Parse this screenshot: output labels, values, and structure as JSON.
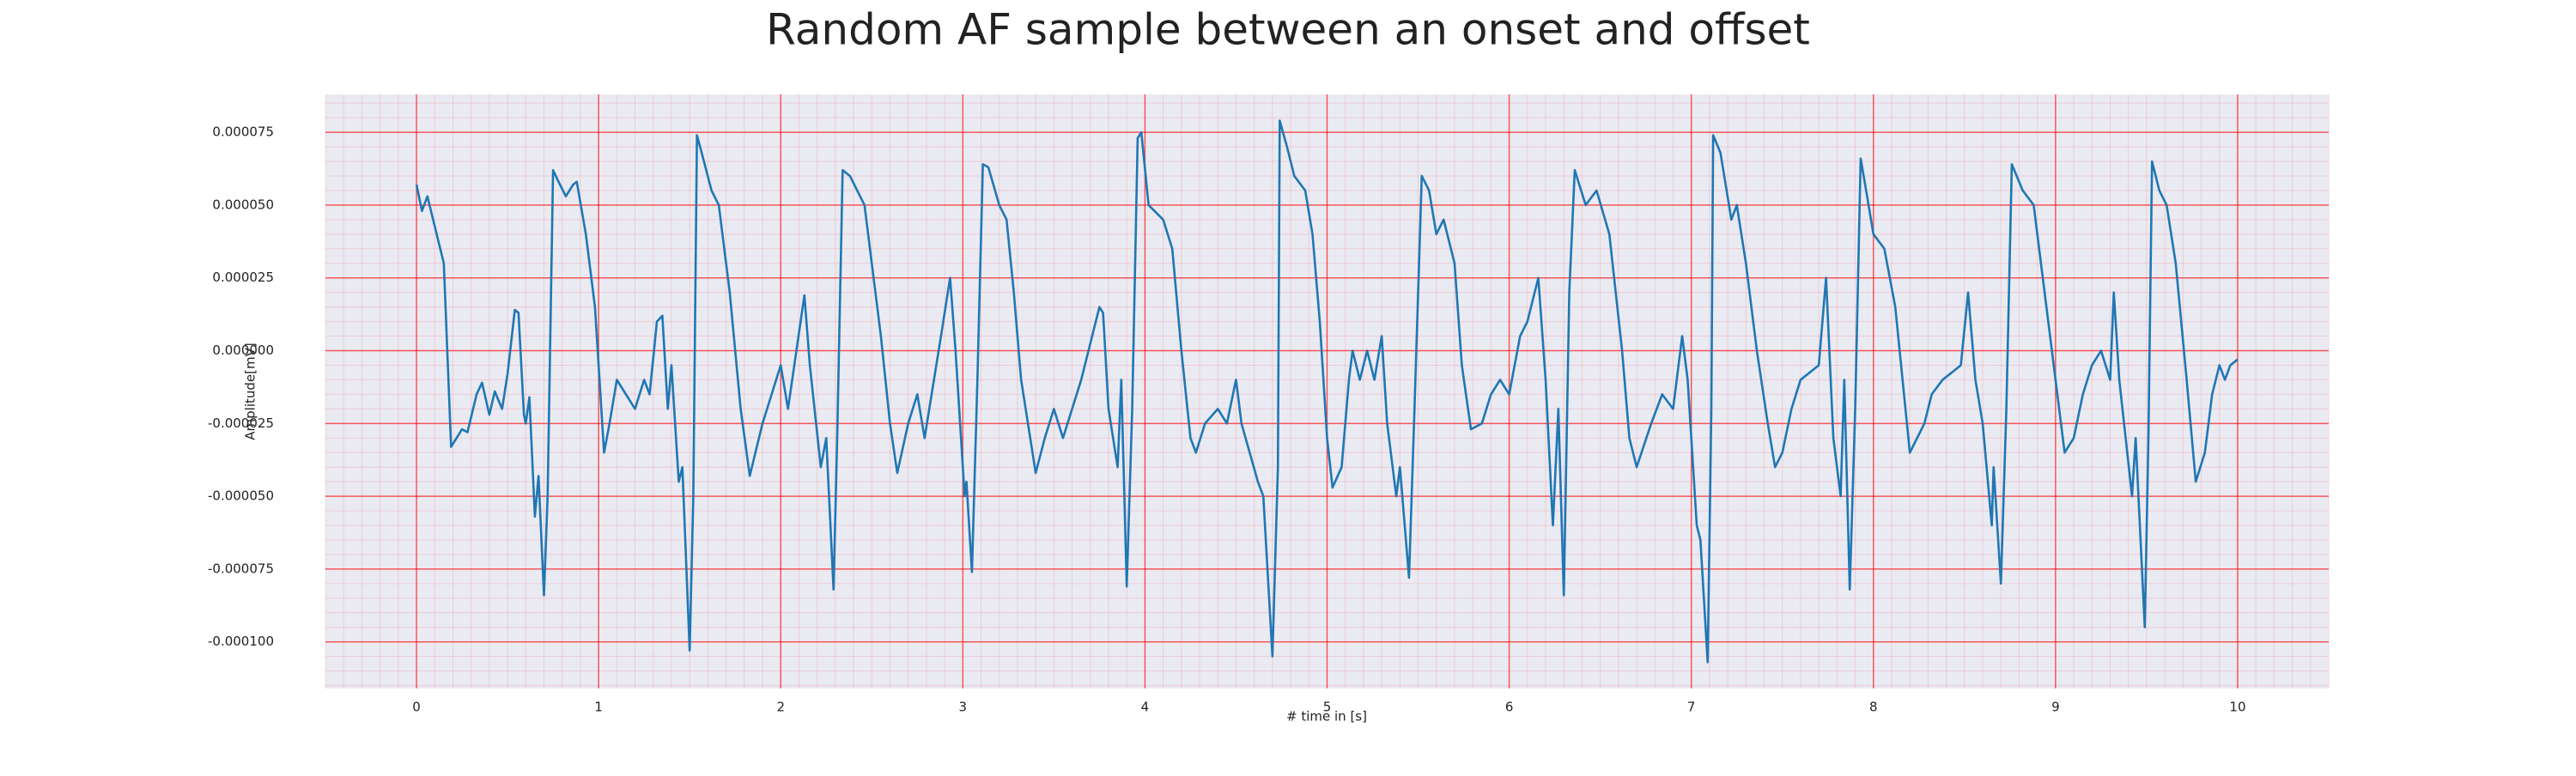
{
  "chart_data": {
    "type": "line",
    "title": "Random AF sample between an onset and offset",
    "xlabel": "# time in [s]",
    "ylabel": "Amplitude[mV]",
    "xlim": [
      -0.5,
      10.5
    ],
    "ylim": [
      -0.000116,
      8.8e-05
    ],
    "xticks": [
      0,
      1,
      2,
      3,
      4,
      5,
      6,
      7,
      8,
      9,
      10
    ],
    "yticks": [
      {
        "value": -0.0001,
        "label": "-0.000100"
      },
      {
        "value": -7.5e-05,
        "label": "-0.000075"
      },
      {
        "value": -5e-05,
        "label": "-0.000050"
      },
      {
        "value": -2.5e-05,
        "label": "-0.000025"
      },
      {
        "value": 0,
        "label": "0.000000"
      },
      {
        "value": 2.5e-05,
        "label": "0.000025"
      },
      {
        "value": 5e-05,
        "label": "0.000050"
      },
      {
        "value": 7.5e-05,
        "label": "0.000075"
      }
    ],
    "grid": true,
    "grid_color": "#ff0000",
    "minor_grid": true,
    "background": "#eaeaf2",
    "series": [
      {
        "color": "#1f77b4",
        "x": [
          0,
          0.03,
          0.06,
          0.15,
          0.19,
          0.25,
          0.28,
          0.33,
          0.36,
          0.4,
          0.43,
          0.47,
          0.5,
          0.54,
          0.56,
          0.59,
          0.6,
          0.62,
          0.65,
          0.67,
          0.7,
          0.72,
          0.75,
          0.78,
          0.82,
          0.86,
          0.88,
          0.93,
          0.98,
          1.03,
          1.06,
          1.1,
          1.14,
          1.2,
          1.25,
          1.28,
          1.32,
          1.35,
          1.38,
          1.4,
          1.44,
          1.46,
          1.5,
          1.52,
          1.54,
          1.57,
          1.62,
          1.66,
          1.72,
          1.78,
          1.83,
          1.9,
          1.95,
          2.0,
          2.04,
          2.13,
          2.16,
          2.22,
          2.25,
          2.29,
          2.31,
          2.34,
          2.38,
          2.42,
          2.46,
          2.5,
          2.55,
          2.6,
          2.64,
          2.7,
          2.75,
          2.79,
          2.88,
          2.93,
          2.96,
          3.01,
          3.02,
          3.05,
          3.08,
          3.11,
          3.14,
          3.2,
          3.24,
          3.28,
          3.32,
          3.4,
          3.45,
          3.5,
          3.55,
          3.6,
          3.65,
          3.75,
          3.77,
          3.8,
          3.85,
          3.87,
          3.9,
          3.93,
          3.96,
          3.98,
          4.02,
          4.1,
          4.15,
          4.2,
          4.25,
          4.28,
          4.33,
          4.4,
          4.45,
          4.5,
          4.53,
          4.62,
          4.65,
          4.7,
          4.73,
          4.74,
          4.78,
          4.82,
          4.88,
          4.92,
          4.96,
          5.0,
          5.03,
          5.08,
          5.12,
          5.14,
          5.18,
          5.22,
          5.26,
          5.3,
          5.33,
          5.38,
          5.4,
          5.45,
          5.48,
          5.52,
          5.56,
          5.6,
          5.64,
          5.7,
          5.74,
          5.79,
          5.85,
          5.9,
          5.95,
          6.0,
          6.06,
          6.1,
          6.16,
          6.2,
          6.24,
          6.27,
          6.3,
          6.33,
          6.36,
          6.42,
          6.48,
          6.55,
          6.62,
          6.66,
          6.7,
          6.78,
          6.84,
          6.9,
          6.95,
          6.98,
          7.03,
          7.05,
          7.09,
          7.11,
          7.12,
          7.16,
          7.22,
          7.25,
          7.3,
          7.36,
          7.42,
          7.46,
          7.5,
          7.55,
          7.6,
          7.7,
          7.74,
          7.78,
          7.82,
          7.84,
          7.87,
          7.9,
          7.93,
          7.96,
          8.0,
          8.06,
          8.12,
          8.16,
          8.2,
          8.28,
          8.32,
          8.38,
          8.48,
          8.52,
          8.56,
          8.6,
          8.65,
          8.66,
          8.7,
          8.73,
          8.76,
          8.82,
          8.88,
          8.94,
          9.0,
          9.05,
          9.1,
          9.15,
          9.2,
          9.25,
          9.3,
          9.32,
          9.35,
          9.42,
          9.44,
          9.49,
          9.51,
          9.53,
          9.57,
          9.61,
          9.66,
          9.72,
          9.77,
          9.82,
          9.86,
          9.9,
          9.93,
          9.96,
          10.0
        ],
        "values": [
          5.7e-05,
          4.8e-05,
          5.3e-05,
          3e-05,
          -3.3e-05,
          -2.7e-05,
          -2.8e-05,
          -1.5e-05,
          -1.1e-05,
          -2.2e-05,
          -1.4e-05,
          -2e-05,
          -8e-06,
          1.4e-05,
          1.3e-05,
          -2.2e-05,
          -2.5e-05,
          -1.6e-05,
          -5.7e-05,
          -4.3e-05,
          -8.4e-05,
          -5e-05,
          6.2e-05,
          5.8e-05,
          5.3e-05,
          5.7e-05,
          5.8e-05,
          4e-05,
          1.5e-05,
          -3.5e-05,
          -2.5e-05,
          -1e-05,
          -1.4e-05,
          -2e-05,
          -1e-05,
          -1.5e-05,
          1e-05,
          1.2e-05,
          -2e-05,
          -5e-06,
          -4.5e-05,
          -4e-05,
          -0.000103,
          -5e-05,
          7.4e-05,
          6.7e-05,
          5.5e-05,
          5e-05,
          2e-05,
          -2e-05,
          -4.3e-05,
          -2.5e-05,
          -1.5e-05,
          -5e-06,
          -2e-05,
          1.9e-05,
          -5e-06,
          -4e-05,
          -3e-05,
          -8.2e-05,
          -3e-05,
          6.2e-05,
          6e-05,
          5.5e-05,
          5e-05,
          3e-05,
          5e-06,
          -2.5e-05,
          -4.2e-05,
          -2.5e-05,
          -1.5e-05,
          -3e-05,
          5e-06,
          2.5e-05,
          0,
          -5e-05,
          -4.5e-05,
          -7.6e-05,
          -1e-05,
          6.4e-05,
          6.3e-05,
          5e-05,
          4.5e-05,
          2e-05,
          -1e-05,
          -4.2e-05,
          -3e-05,
          -2e-05,
          -3e-05,
          -2e-05,
          -1e-05,
          1.5e-05,
          1.3e-05,
          -2e-05,
          -4e-05,
          -1e-05,
          -8.1e-05,
          -2e-05,
          7.3e-05,
          7.5e-05,
          5e-05,
          4.5e-05,
          3.5e-05,
          0,
          -3e-05,
          -3.5e-05,
          -2.5e-05,
          -2e-05,
          -2.5e-05,
          -1e-05,
          -2.5e-05,
          -4.5e-05,
          -5e-05,
          -0.000105,
          -4e-05,
          7.9e-05,
          7e-05,
          6e-05,
          5.5e-05,
          4e-05,
          1e-05,
          -3e-05,
          -4.7e-05,
          -4e-05,
          -1e-05,
          0,
          -1e-05,
          0,
          -1e-05,
          5e-06,
          -2.5e-05,
          -5e-05,
          -4e-05,
          -7.8e-05,
          -2e-05,
          6e-05,
          5.5e-05,
          4e-05,
          4.5e-05,
          3e-05,
          -5e-06,
          -2.7e-05,
          -2.5e-05,
          -1.5e-05,
          -1e-05,
          -1.5e-05,
          5e-06,
          1e-05,
          2.5e-05,
          -1e-05,
          -6e-05,
          -2e-05,
          -8.4e-05,
          2e-05,
          6.2e-05,
          5e-05,
          5.5e-05,
          4e-05,
          0,
          -3e-05,
          -4e-05,
          -2.5e-05,
          -1.5e-05,
          -2e-05,
          5e-06,
          -1e-05,
          -6e-05,
          -6.5e-05,
          -0.000107,
          -2e-05,
          7.4e-05,
          6.8e-05,
          4.5e-05,
          5e-05,
          3e-05,
          0,
          -2.5e-05,
          -4e-05,
          -3.5e-05,
          -2e-05,
          -1e-05,
          -5e-06,
          2.5e-05,
          -3e-05,
          -5e-05,
          -1e-05,
          -8.2e-05,
          -2e-05,
          6.6e-05,
          5.5e-05,
          4e-05,
          3.5e-05,
          1.5e-05,
          -1e-05,
          -3.5e-05,
          -2.5e-05,
          -1.5e-05,
          -1e-05,
          -5e-06,
          2e-05,
          -1e-05,
          -2.5e-05,
          -6e-05,
          -4e-05,
          -8e-05,
          -2e-05,
          6.4e-05,
          5.5e-05,
          5e-05,
          2e-05,
          -1e-05,
          -3.5e-05,
          -3e-05,
          -1.5e-05,
          -5e-06,
          0,
          -1e-05,
          2e-05,
          -1e-05,
          -5e-05,
          -3e-05,
          -9.5e-05,
          -3e-05,
          6.5e-05,
          5.5e-05,
          5e-05,
          3e-05,
          -1e-05,
          -4.5e-05,
          -3.5e-05,
          -1.5e-05,
          -5e-06,
          -1e-05,
          -5e-06,
          -3e-06
        ]
      }
    ]
  }
}
